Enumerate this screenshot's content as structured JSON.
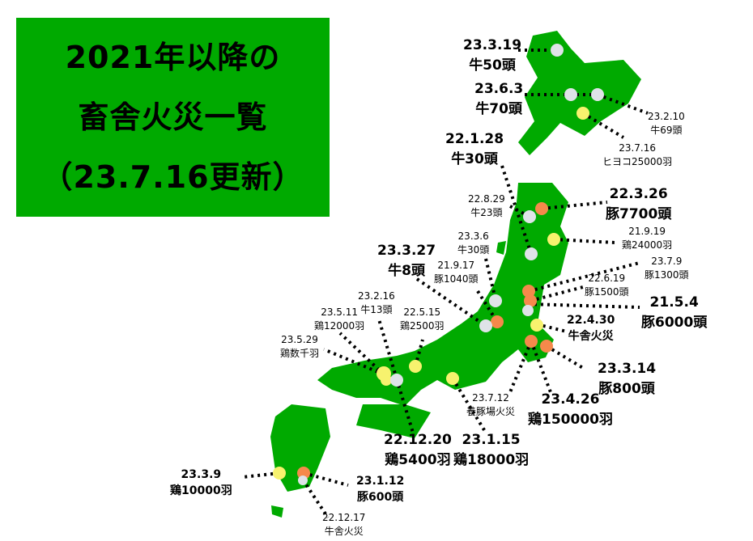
{
  "title": {
    "line1": "2021年以降の",
    "line2": "畜舎火災一覧",
    "line3": "（23.7.16更新）"
  },
  "colors": {
    "land": "#00aa00",
    "pig": "#f5894b",
    "chicken": "#f7f26e",
    "cattle": "#dfe3e8"
  },
  "incidents": [
    {
      "date": "23.3.19",
      "detail": "牛50頭",
      "type": "cattle"
    },
    {
      "date": "23.6.3",
      "detail": "牛70頭",
      "type": "cattle"
    },
    {
      "date": "23.2.10",
      "detail": "牛69頭",
      "type": "cattle"
    },
    {
      "date": "23.7.16",
      "detail": "ヒヨコ25000羽",
      "type": "chicken"
    },
    {
      "date": "22.1.28",
      "detail": "牛30頭",
      "type": "cattle"
    },
    {
      "date": "22.8.29",
      "detail": "牛23頭",
      "type": "cattle"
    },
    {
      "date": "22.3.26",
      "detail": "豚7700頭",
      "type": "pig"
    },
    {
      "date": "21.9.19",
      "detail": "鶏24000羽",
      "type": "chicken"
    },
    {
      "date": "23.3.6",
      "detail": "牛30頭",
      "type": "cattle"
    },
    {
      "date": "21.9.17",
      "detail": "豚1040頭",
      "type": "pig"
    },
    {
      "date": "23.3.27",
      "detail": "牛8頭",
      "type": "cattle"
    },
    {
      "date": "23.7.9",
      "detail": "豚1300頭",
      "type": "pig"
    },
    {
      "date": "22.6.19",
      "detail": "豚1500頭",
      "type": "pig"
    },
    {
      "date": "21.5.4",
      "detail": "豚6000頭",
      "type": "pig"
    },
    {
      "date": "22.4.30",
      "detail": "牛舎火災",
      "type": "cattle"
    },
    {
      "date": "23.3.14",
      "detail": "豚800頭",
      "type": "pig"
    },
    {
      "date": "23.4.26",
      "detail": "鶏150000羽",
      "type": "chicken"
    },
    {
      "date": "23.7.12",
      "detail": "養豚場火災",
      "type": "pig"
    },
    {
      "date": "23.1.15",
      "detail": "鶏18000羽",
      "type": "chicken"
    },
    {
      "date": "22.5.15",
      "detail": "鶏2500羽",
      "type": "chicken"
    },
    {
      "date": "23.2.16",
      "detail": "牛13頭",
      "type": "cattle"
    },
    {
      "date": "23.5.11",
      "detail": "鶏12000羽",
      "type": "chicken"
    },
    {
      "date": "23.5.29",
      "detail": "鶏数千羽",
      "type": "chicken"
    },
    {
      "date": "22.12.20",
      "detail": "鶏5400羽",
      "type": "chicken"
    },
    {
      "date": "23.3.9",
      "detail": "鶏10000羽",
      "type": "chicken"
    },
    {
      "date": "23.1.12",
      "detail": "豚600頭",
      "type": "pig"
    },
    {
      "date": "22.12.17",
      "detail": "牛舎火災",
      "type": "cattle"
    }
  ]
}
